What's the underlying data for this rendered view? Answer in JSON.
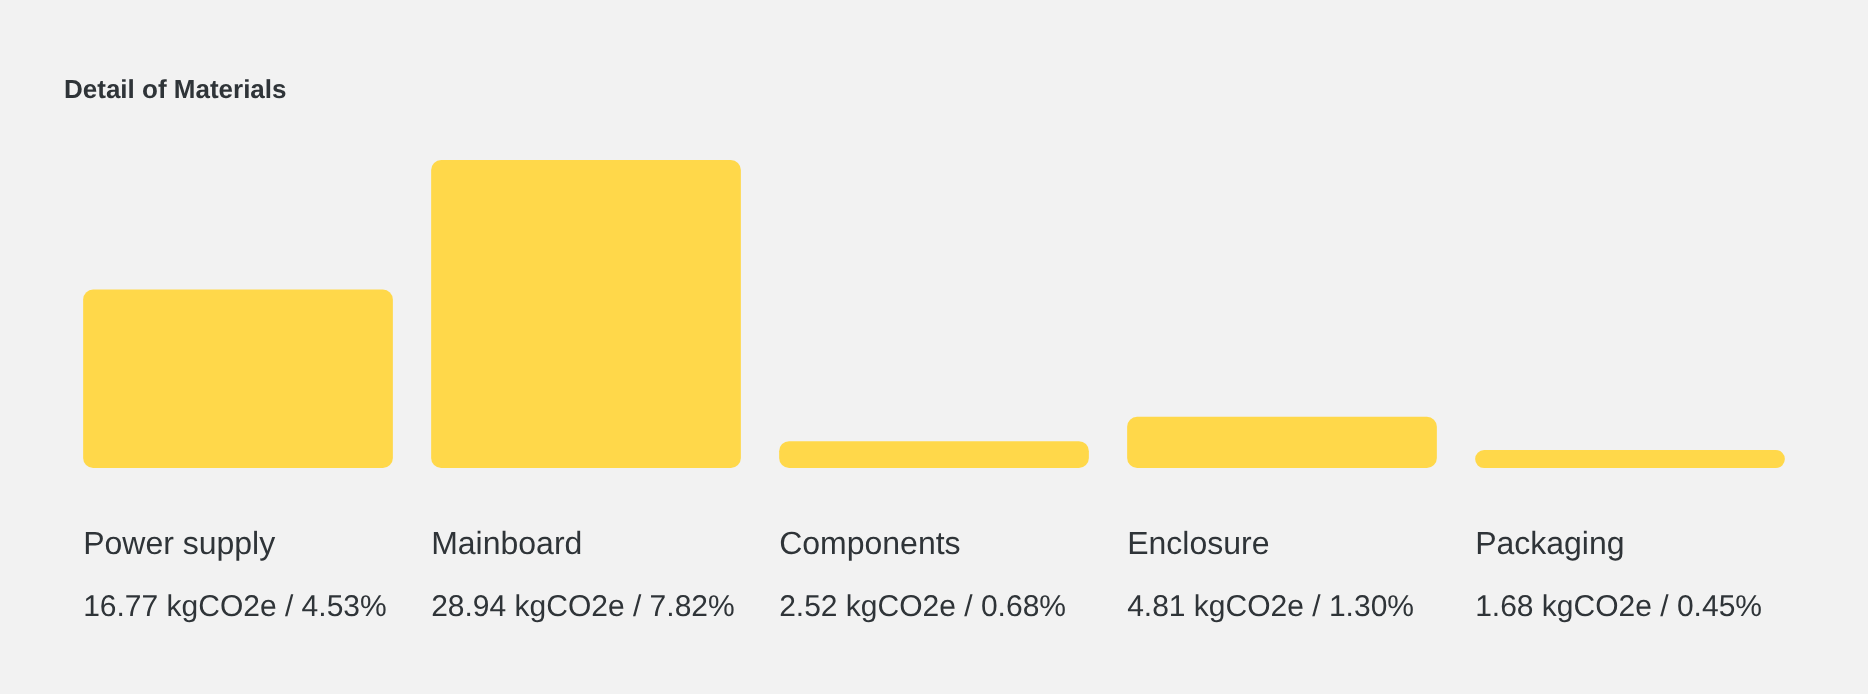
{
  "chart_data": {
    "type": "bar",
    "title": "Detail of Materials",
    "categories": [
      "Power supply",
      "Mainboard",
      "Components",
      "Enclosure",
      "Packaging"
    ],
    "values": [
      16.77,
      28.94,
      2.52,
      4.81,
      1.68
    ],
    "value_labels": [
      "16.77 kgCO2e / 4.53%",
      "28.94 kgCO2e / 7.82%",
      "2.52 kgCO2e / 0.68%",
      "4.81 kgCO2e / 1.30%",
      "1.68 kgCO2e / 0.45%"
    ],
    "color": "#ffd84a",
    "legend": false,
    "tick_labels": false
  }
}
